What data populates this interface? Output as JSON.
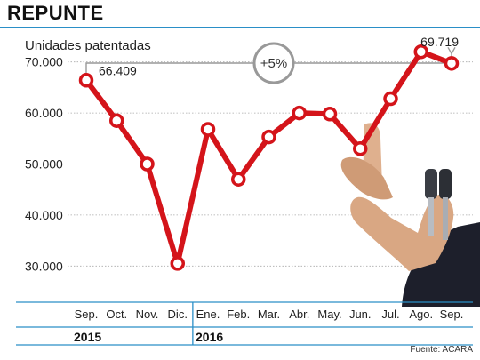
{
  "title": "REPUNTE",
  "source": "Fuente: ACARA",
  "colors": {
    "accent": "#2a8fc7",
    "line": "#d4141a",
    "grid": "#aaaaaa"
  },
  "chart_data": {
    "type": "line",
    "ylabel": "Unidades patentadas",
    "categories": [
      "Sep.",
      "Oct.",
      "Nov.",
      "Dic.",
      "Ene.",
      "Feb.",
      "Mar.",
      "Abr.",
      "May.",
      "Jun.",
      "Jul.",
      "Ago.",
      "Sep."
    ],
    "years": [
      {
        "label": "2015",
        "start": 0,
        "end": 3
      },
      {
        "label": "2016",
        "start": 4,
        "end": 12
      }
    ],
    "series": [
      {
        "values": [
          66409,
          58500,
          50000,
          30500,
          56800,
          47000,
          55300,
          60000,
          59800,
          53000,
          62800,
          72000,
          69719
        ]
      }
    ],
    "ylim": [
      25000,
      75000
    ],
    "yticks": [
      30000,
      40000,
      50000,
      60000,
      70000
    ],
    "ytick_labels": [
      "30.000",
      "40.000",
      "50.000",
      "60.000",
      "70.000"
    ],
    "value_labels": [
      {
        "index": 0,
        "text": "66.409"
      },
      {
        "index": 12,
        "text": "69.719"
      }
    ],
    "annotation": {
      "text": "+5%",
      "from": 0,
      "to": 12
    },
    "grid": true,
    "image_overlay": "hand-holding-car-keys"
  }
}
